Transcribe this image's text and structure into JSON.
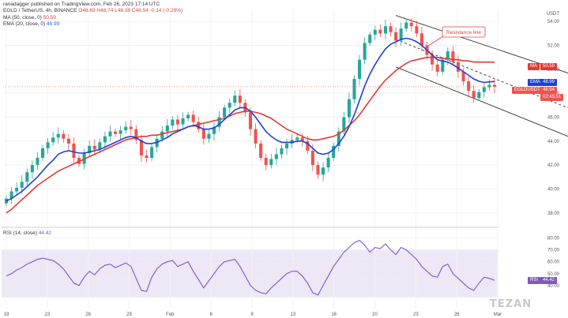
{
  "header": {
    "symbol_line": "EGLD / TetherUS, 4h, BINANCE",
    "author_line": "ranadagger published on TradingView.com, Feb 26, 2023 17:14 UTC",
    "ohlc": "O48.69 H48.74 L48.38 C48.54 -0.14 (-0.29%)",
    "ma_label": "MA (50, close, 0)",
    "ma_value": "50.59",
    "ema_label": "EMA (20, close, 0)",
    "ema_value": "48.99",
    "rsi_label": "RSI (14, close)",
    "rsi_value": "44.42"
  },
  "colors": {
    "up": "#26a69a",
    "down": "#ef5350",
    "ma": "#e53935",
    "ema": "#1e40d8",
    "rsi": "#7e57c2",
    "channel": "#333333",
    "rsi_band": "#ede7f6"
  },
  "badges": {
    "ma": "50.59",
    "ema": "48.99",
    "last_name": "EGLDUSDT",
    "last_price": "48.54",
    "countdown": "02:45:51",
    "rsi": "44.42",
    "ma_tag": "MA",
    "ema_tag": "EMA",
    "rsi_tag": "RSI"
  },
  "watermark": "TEZAN",
  "chart_data": {
    "type": "candlestick",
    "title": "EGLD / TetherUS, 4h, BINANCE",
    "annotation": "Resistance line",
    "yaxis_title": "USDT",
    "ylim": [
      37,
      55
    ],
    "y_ticks": [
      "54.00",
      "52.00",
      "50.00",
      "48.00",
      "46.00",
      "44.00",
      "42.00",
      "40.00",
      "38.00"
    ],
    "x_ticks": [
      "19",
      "23",
      "26",
      "29",
      "Feb",
      "6",
      "9",
      "13",
      "16",
      "20",
      "23",
      "26",
      "Mar"
    ],
    "close": [
      39.2,
      39.8,
      40.1,
      40.6,
      41.4,
      42.0,
      42.6,
      43.4,
      43.9,
      44.3,
      44.6,
      44.2,
      43.8,
      42.6,
      42.1,
      43.0,
      43.6,
      43.3,
      43.9,
      44.4,
      44.8,
      44.6,
      44.9,
      45.2,
      45.0,
      44.1,
      42.8,
      42.6,
      43.5,
      44.2,
      44.8,
      45.3,
      45.8,
      45.4,
      45.9,
      46.2,
      45.6,
      45.0,
      44.2,
      44.6,
      45.2,
      46.0,
      46.8,
      47.2,
      47.8,
      47.2,
      46.4,
      45.0,
      43.8,
      42.6,
      42.0,
      42.5,
      42.9,
      43.4,
      43.8,
      44.1,
      44.3,
      44.0,
      43.2,
      42.0,
      41.2,
      41.8,
      42.6,
      43.6,
      44.8,
      46.0,
      47.5,
      49.2,
      50.8,
      52.2,
      52.9,
      53.3,
      53.0,
      53.6,
      53.1,
      52.4,
      53.4,
      53.9,
      53.6,
      53.0,
      52.0,
      51.2,
      50.4,
      49.8,
      50.8,
      51.5,
      50.6,
      49.8,
      49.0,
      48.2,
      47.6,
      48.1,
      48.5,
      48.7,
      48.54
    ],
    "ma50": [
      38.0,
      38.3,
      38.7,
      39.1,
      39.5,
      39.9,
      40.3,
      40.6,
      40.9,
      41.2,
      41.5,
      41.7,
      41.9,
      42.1,
      42.3,
      42.5,
      42.7,
      42.9,
      43.1,
      43.3,
      43.5,
      43.7,
      43.9,
      44.1,
      44.2,
      44.3,
      44.4,
      44.4,
      44.5,
      44.5,
      44.6,
      44.7,
      44.8,
      44.9,
      45.0,
      45.2,
      45.3,
      45.4,
      45.5,
      45.6,
      45.7,
      45.8,
      45.9,
      46.1,
      46.3,
      46.4,
      46.5,
      46.5,
      46.4,
      46.3,
      46.1,
      45.9,
      45.6,
      45.3,
      45.0,
      44.8,
      44.6,
      44.4,
      44.2,
      44.1,
      44.1,
      44.2,
      44.3,
      44.4,
      44.6,
      44.9,
      45.3,
      45.7,
      46.2,
      46.8,
      47.4,
      48.0,
      48.6,
      49.1,
      49.5,
      49.9,
      50.2,
      50.5,
      50.7,
      50.8,
      50.9,
      51.0,
      51.0,
      51.0,
      50.9,
      50.9,
      50.8,
      50.8,
      50.7,
      50.7,
      50.6,
      50.6,
      50.6,
      50.6,
      50.59
    ],
    "ema20": [
      39.0,
      39.2,
      39.5,
      39.8,
      40.2,
      40.6,
      41.0,
      41.5,
      42.0,
      42.4,
      42.9,
      43.1,
      43.2,
      43.1,
      43.0,
      43.0,
      43.1,
      43.2,
      43.3,
      43.5,
      43.7,
      43.9,
      44.1,
      44.3,
      44.4,
      44.3,
      44.0,
      43.8,
      43.8,
      43.9,
      44.1,
      44.3,
      44.6,
      44.8,
      45.0,
      45.2,
      45.3,
      45.2,
      45.0,
      45.0,
      45.1,
      45.4,
      45.8,
      46.2,
      46.6,
      46.8,
      46.8,
      46.5,
      46.0,
      45.4,
      44.8,
      44.4,
      44.1,
      43.9,
      43.9,
      43.9,
      44.0,
      44.0,
      43.8,
      43.4,
      43.0,
      42.9,
      43.0,
      43.3,
      43.8,
      44.4,
      45.2,
      46.2,
      47.4,
      48.6,
      49.6,
      50.4,
      51.1,
      51.7,
      52.1,
      52.3,
      52.5,
      52.6,
      52.5,
      52.3,
      52.0,
      51.6,
      51.2,
      50.8,
      50.7,
      50.6,
      50.4,
      50.1,
      49.8,
      49.5,
      49.2,
      49.0,
      48.9,
      48.95,
      48.99
    ],
    "rsi": [
      48,
      50,
      53,
      55,
      58,
      60,
      62,
      63,
      62,
      61,
      58,
      54,
      48,
      42,
      40,
      47,
      52,
      49,
      54,
      57,
      58,
      55,
      57,
      59,
      56,
      46,
      36,
      35,
      47,
      54,
      58,
      60,
      61,
      56,
      58,
      60,
      52,
      45,
      38,
      44,
      50,
      56,
      60,
      61,
      62,
      56,
      48,
      40,
      36,
      34,
      33,
      38,
      42,
      46,
      50,
      52,
      52,
      48,
      42,
      34,
      32,
      40,
      48,
      56,
      62,
      68,
      72,
      76,
      78,
      74,
      68,
      72,
      71,
      75,
      70,
      66,
      72,
      70,
      66,
      62,
      56,
      52,
      48,
      47,
      56,
      58,
      50,
      46,
      42,
      38,
      36,
      42,
      47,
      46,
      44.42
    ],
    "rsi_ylim": [
      20,
      85
    ],
    "rsi_ticks": [
      "80.00",
      "70.00",
      "60.00",
      "50.00",
      "40.00"
    ],
    "rsi_band": [
      30,
      70
    ],
    "channel": {
      "resistance": {
        "from": [
          75,
          54.5
        ],
        "to": [
          115,
          48.7
        ]
      },
      "middle": {
        "from": [
          75,
          52.5
        ],
        "to": [
          115,
          45.6
        ]
      },
      "support": {
        "from": [
          75,
          50.2
        ],
        "to": [
          115,
          43.2
        ]
      }
    }
  }
}
